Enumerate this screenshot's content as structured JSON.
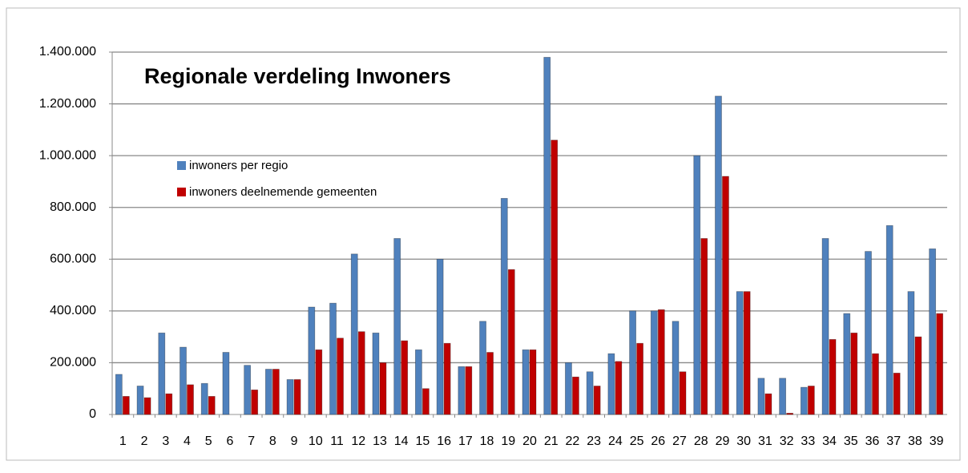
{
  "chart_data": {
    "type": "bar",
    "title": "Regionale verdeling Inwoners",
    "categories": [
      "1",
      "2",
      "3",
      "4",
      "5",
      "6",
      "7",
      "8",
      "9",
      "10",
      "11",
      "12",
      "13",
      "14",
      "15",
      "16",
      "17",
      "18",
      "19",
      "20",
      "21",
      "22",
      "23",
      "24",
      "25",
      "26",
      "27",
      "28",
      "29",
      "30",
      "31",
      "32",
      "33",
      "34",
      "35",
      "36",
      "37",
      "38",
      "39"
    ],
    "series": [
      {
        "name": "inwoners per regio",
        "color": "#4f81bd",
        "values": [
          155000,
          110000,
          315000,
          260000,
          120000,
          240000,
          190000,
          175000,
          135000,
          415000,
          430000,
          620000,
          315000,
          680000,
          250000,
          600000,
          185000,
          360000,
          835000,
          250000,
          1380000,
          200000,
          165000,
          235000,
          400000,
          400000,
          360000,
          1000000,
          1230000,
          475000,
          140000,
          140000,
          105000,
          680000,
          390000,
          630000,
          730000,
          475000,
          640000
        ]
      },
      {
        "name": "inwoners deelnemende gemeenten",
        "color": "#c00000",
        "values": [
          70000,
          65000,
          80000,
          115000,
          70000,
          0,
          95000,
          175000,
          135000,
          250000,
          295000,
          320000,
          200000,
          285000,
          100000,
          275000,
          185000,
          240000,
          560000,
          250000,
          1060000,
          145000,
          110000,
          205000,
          275000,
          405000,
          165000,
          680000,
          920000,
          475000,
          80000,
          5000,
          110000,
          290000,
          315000,
          235000,
          160000,
          300000,
          390000
        ]
      }
    ],
    "ylim": [
      0,
      1400000
    ],
    "yticks": [
      0,
      {
        "value": 200000,
        "label": "200.000"
      },
      {
        "value": 400000,
        "label": "400.000"
      },
      {
        "value": 600000,
        "label": "600.000"
      },
      {
        "value": 800000,
        "label": "800.000"
      },
      {
        "value": 1000000,
        "label": "1.000.000"
      },
      {
        "value": 1200000,
        "label": "1.200.000"
      },
      {
        "value": 1400000,
        "label": "1.400.000"
      }
    ],
    "grid": true
  }
}
